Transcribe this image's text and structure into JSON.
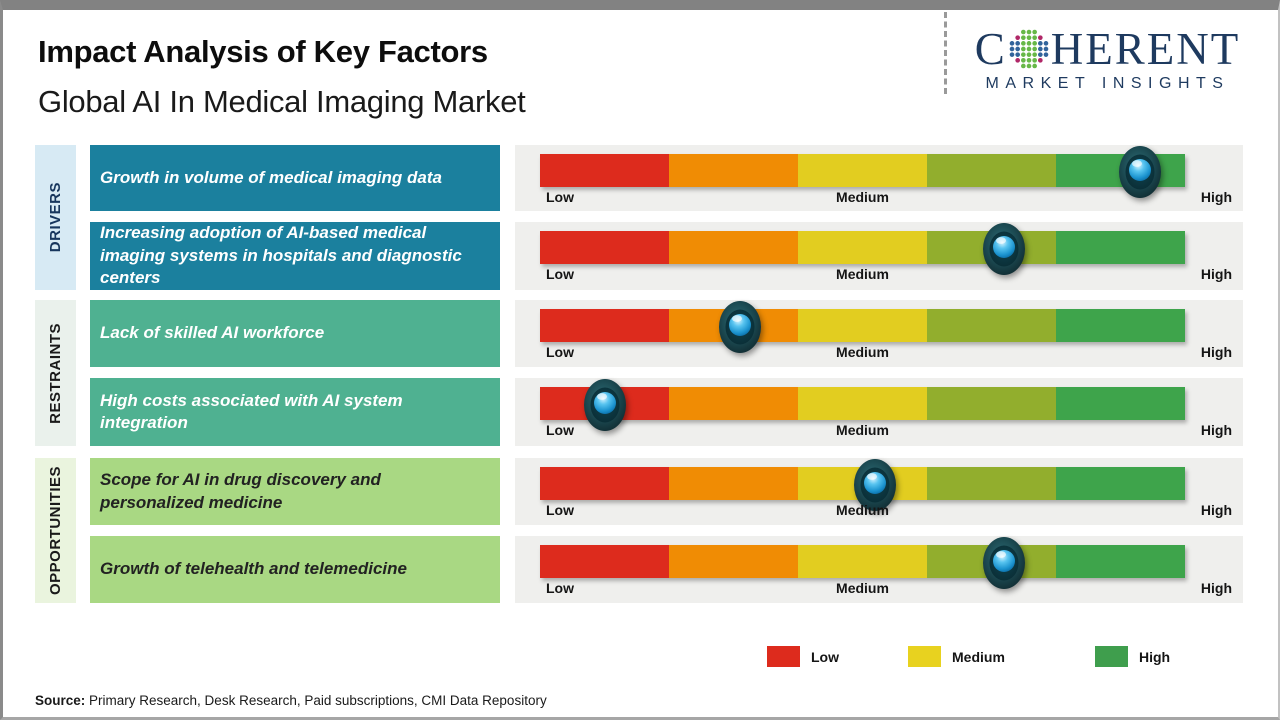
{
  "header": {
    "title": "Impact Analysis of Key Factors",
    "subtitle": "Global AI In Medical Imaging Market"
  },
  "logo": {
    "word_start": "C",
    "word_end": "HERENT",
    "tagline": "MARKET INSIGHTS",
    "globe_icon": "dotted-globe"
  },
  "sections": [
    {
      "label": "DRIVERS"
    },
    {
      "label": "RESTRAINTS"
    },
    {
      "label": "OPPORTUNITIES"
    }
  ],
  "axis": {
    "low": "Low",
    "medium": "Medium",
    "high": "High"
  },
  "chart_data": {
    "type": "bar",
    "title": "Impact Analysis of Key Factors",
    "subtitle": "Global AI In Medical Imaging Market",
    "x_scale_labels": [
      "Low",
      "Medium",
      "High"
    ],
    "segment_names": [
      "low",
      "low-medium",
      "medium",
      "medium-high",
      "high"
    ],
    "series": [
      {
        "category": "Drivers",
        "factor": "Growth in volume of medical imaging data",
        "impact_position": 0.93,
        "impact_level": "High"
      },
      {
        "category": "Drivers",
        "factor": "Increasing adoption of AI-based medical imaging systems in hospitals and diagnostic centers",
        "impact_position": 0.72,
        "impact_level": "Medium-High"
      },
      {
        "category": "Restraints",
        "factor": "Lack of skilled AI workforce",
        "impact_position": 0.31,
        "impact_level": "Low-Medium"
      },
      {
        "category": "Restraints",
        "factor": "High costs associated with AI system integration",
        "impact_position": 0.1,
        "impact_level": "Low"
      },
      {
        "category": "Opportunities",
        "factor": "Scope for AI in drug discovery and personalized medicine",
        "impact_position": 0.52,
        "impact_level": "Medium"
      },
      {
        "category": "Opportunities",
        "factor": "Growth of telehealth and telemedicine",
        "impact_position": 0.72,
        "impact_level": "Medium-High"
      }
    ]
  },
  "legend": {
    "items": [
      {
        "label": "Low",
        "color": "#dd2b1d"
      },
      {
        "label": "Medium",
        "color": "#e8d21f"
      },
      {
        "label": "High",
        "color": "#3f9e4d"
      }
    ]
  },
  "source": {
    "label": "Source:",
    "text": "Primary Research, Desk Research, Paid subscriptions, CMI Data Repository"
  },
  "colors": {
    "logo_navy": "#1e3a5f",
    "driver_box": "#1b809e",
    "restraint_box": "#4fb191",
    "opportunity_box": "#a9d883",
    "driver_tab_bg": "#d7eaf4",
    "restraint_tab_bg": "#eaf1ec",
    "opportunity_tab_bg": "#eaf4de",
    "panel_bg": "#efefed",
    "scale_segments": [
      "#dd2b1d",
      "#f08c04",
      "#e2cd20",
      "#92ae2d",
      "#3ea44b"
    ],
    "marker_outer": "#143036",
    "marker_blue": "#2aa7e2",
    "globe_green": "#67b847",
    "globe_blue": "#31649b",
    "globe_crimson": "#b02767"
  }
}
